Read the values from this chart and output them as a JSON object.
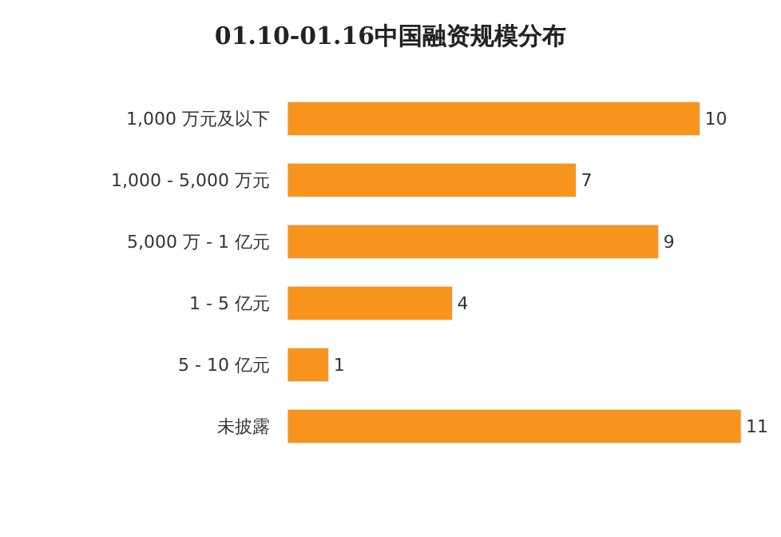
{
  "chart_data": {
    "type": "bar",
    "orientation": "horizontal",
    "title": "01.10-01.16中国融资规模分布",
    "categories": [
      "1,000 万元及以下",
      "1,000 - 5,000 万元",
      "5,000 万 - 1 亿元",
      "1 - 5 亿元",
      "5 - 10 亿元",
      "未披露"
    ],
    "values": [
      10,
      7,
      9,
      4,
      1,
      11
    ],
    "color": "#f7941d",
    "data_labels": true,
    "tick_labels": "y",
    "legend": false
  }
}
